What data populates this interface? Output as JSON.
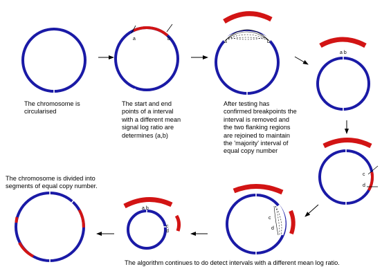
{
  "diagram": {
    "steps": [
      {
        "caption": "The chromosome is\ncircularised"
      },
      {
        "caption": "The start and end\npoints of a interval\nwith a different mean\nsignal log ratio are\ndetermines (a,b)"
      },
      {
        "caption": "After testing has\nconfirmed breakpoints the\ninterval is removed and\nthe two flanking regions\nare rejoined to maintain\nthe 'majority' interval of\nequal copy number"
      },
      {
        "caption": ""
      },
      {
        "caption": ""
      },
      {
        "caption": ""
      },
      {
        "caption": ""
      },
      {
        "caption": "The chromosome is divided into\nsegments of equal copy number."
      }
    ],
    "bottom_caption": "The algorithm continues to do detect intervals with a different mean log ratio.",
    "breakpoint_labels": {
      "a": "a",
      "b": "b",
      "c": "c",
      "d": "d",
      "ab": "a b",
      "cd": "c\nd"
    },
    "colors": {
      "chromosome": "#1a1aa6",
      "interval": "#d21414",
      "arrow": "#000000"
    }
  }
}
